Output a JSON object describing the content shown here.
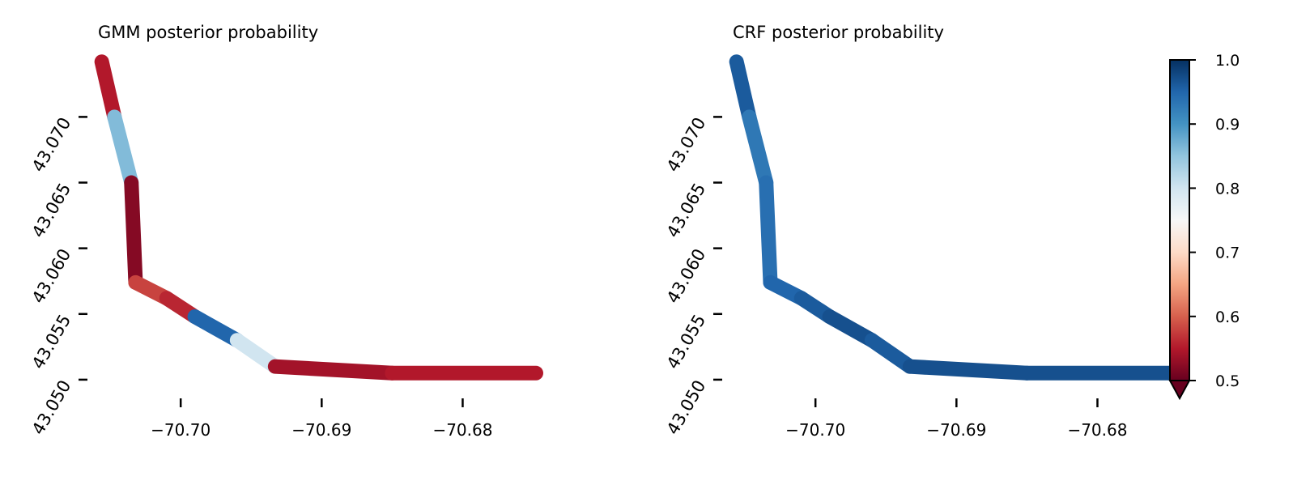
{
  "chart_data": [
    {
      "type": "map",
      "title": "GMM posterior probability",
      "xlabel": "",
      "ylabel": "",
      "xticks": [
        "−70.70",
        "−70.69",
        "−70.68"
      ],
      "xtick_values": [
        -70.7,
        -70.69,
        -70.68
      ],
      "yticks": [
        "43.050",
        "43.055",
        "43.060",
        "43.065",
        "43.070"
      ],
      "ytick_values": [
        43.05,
        43.055,
        43.06,
        43.065,
        43.07
      ],
      "xlim": [
        -70.7065,
        -70.6748
      ],
      "ylim": [
        43.0487,
        43.0744
      ],
      "grid": false,
      "track": [
        {
          "lon": -70.7056,
          "lat": 43.0742
        },
        {
          "lon": -70.7047,
          "lat": 43.07
        },
        {
          "lon": -70.7035,
          "lat": 43.065
        },
        {
          "lon": -70.7032,
          "lat": 43.0574
        },
        {
          "lon": -70.701,
          "lat": 43.0562
        },
        {
          "lon": -70.699,
          "lat": 43.0548
        },
        {
          "lon": -70.696,
          "lat": 43.053
        },
        {
          "lon": -70.6933,
          "lat": 43.051
        },
        {
          "lon": -70.685,
          "lat": 43.0505
        },
        {
          "lon": -70.6748,
          "lat": 43.0505
        }
      ],
      "segment_probability": [
        0.55,
        0.86,
        0.52,
        0.58,
        0.56,
        0.95,
        0.8,
        0.54,
        0.55
      ]
    },
    {
      "type": "map",
      "title": "CRF posterior probability",
      "xlabel": "",
      "ylabel": "",
      "xticks": [
        "−70.70",
        "−70.69",
        "−70.68"
      ],
      "xtick_values": [
        -70.7,
        -70.69,
        -70.68
      ],
      "yticks": [
        "43.050",
        "43.055",
        "43.060",
        "43.065",
        "43.070"
      ],
      "ytick_values": [
        43.05,
        43.055,
        43.06,
        43.065,
        43.07
      ],
      "xlim": [
        -70.7065,
        -70.6748
      ],
      "ylim": [
        43.0487,
        43.0744
      ],
      "grid": false,
      "track": [
        {
          "lon": -70.7056,
          "lat": 43.0742
        },
        {
          "lon": -70.7047,
          "lat": 43.07
        },
        {
          "lon": -70.7035,
          "lat": 43.065
        },
        {
          "lon": -70.7032,
          "lat": 43.0574
        },
        {
          "lon": -70.701,
          "lat": 43.0562
        },
        {
          "lon": -70.699,
          "lat": 43.0548
        },
        {
          "lon": -70.696,
          "lat": 43.053
        },
        {
          "lon": -70.6933,
          "lat": 43.051
        },
        {
          "lon": -70.685,
          "lat": 43.0505
        },
        {
          "lon": -70.6748,
          "lat": 43.0505
        }
      ],
      "segment_probability": [
        0.96,
        0.93,
        0.94,
        0.95,
        0.96,
        0.97,
        0.96,
        0.97,
        0.97
      ]
    }
  ],
  "colorbar": {
    "colormap": "RdBu",
    "range": [
      0.5,
      1.0
    ],
    "extend": "min",
    "tick_values": [
      0.5,
      0.6,
      0.7,
      0.8,
      0.9,
      1.0
    ],
    "tick_labels": [
      "0.5",
      "0.6",
      "0.7",
      "0.8",
      "0.9",
      "1.0"
    ],
    "colors": [
      "#67001f",
      "#b2182b",
      "#d6604d",
      "#f4a582",
      "#fddbc7",
      "#f7f7f7",
      "#d1e5f0",
      "#92c5de",
      "#4393c3",
      "#2166ac",
      "#053061"
    ]
  }
}
